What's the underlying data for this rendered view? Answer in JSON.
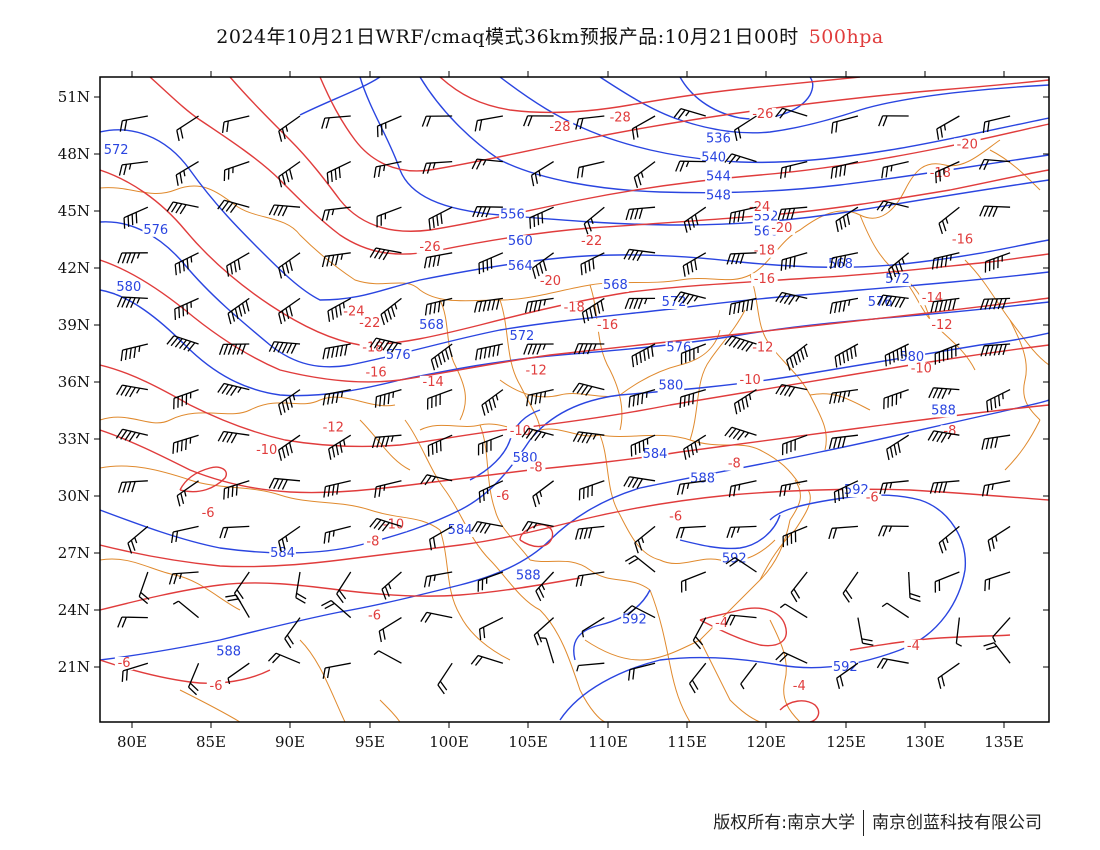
{
  "title": {
    "main": "2024年10月21日WRF/cmaq模式36km预报产品:10月21日00时",
    "level": "500hpa"
  },
  "axes": {
    "lat_labels": [
      "51N",
      "48N",
      "45N",
      "42N",
      "39N",
      "36N",
      "33N",
      "30N",
      "27N",
      "24N",
      "21N"
    ],
    "lon_labels": [
      "80E",
      "85E",
      "90E",
      "95E",
      "100E",
      "105E",
      "110E",
      "115E",
      "120E",
      "125E",
      "130E",
      "135E"
    ]
  },
  "colors": {
    "geopotential": "#2a45e0",
    "temperature": "#e03c3c",
    "border": "#e08a2e",
    "wind": "#000000",
    "frame": "#000000"
  },
  "contour_labels": {
    "height": [
      {
        "text": "572",
        "lon": 79.0,
        "lat": 48.0
      },
      {
        "text": "576",
        "lon": 81.5,
        "lat": 43.8
      },
      {
        "text": "580",
        "lon": 79.8,
        "lat": 40.8
      },
      {
        "text": "536",
        "lon": 117.0,
        "lat": 48.6
      },
      {
        "text": "540",
        "lon": 116.7,
        "lat": 47.6
      },
      {
        "text": "544",
        "lon": 117.0,
        "lat": 46.6
      },
      {
        "text": "548",
        "lon": 117.0,
        "lat": 45.6
      },
      {
        "text": "552",
        "lon": 120.0,
        "lat": 44.5
      },
      {
        "text": "556",
        "lon": 104.0,
        "lat": 44.6
      },
      {
        "text": "560",
        "lon": 120.0,
        "lat": 43.7
      },
      {
        "text": "560",
        "lon": 104.5,
        "lat": 43.2
      },
      {
        "text": "564",
        "lon": 104.5,
        "lat": 41.9
      },
      {
        "text": "568",
        "lon": 124.7,
        "lat": 42.0
      },
      {
        "text": "568",
        "lon": 98.9,
        "lat": 38.8
      },
      {
        "text": "568",
        "lon": 110.5,
        "lat": 40.9
      },
      {
        "text": "572",
        "lon": 114.2,
        "lat": 40.0
      },
      {
        "text": "572",
        "lon": 104.6,
        "lat": 38.2
      },
      {
        "text": "572",
        "lon": 128.3,
        "lat": 41.2
      },
      {
        "text": "576",
        "lon": 96.8,
        "lat": 37.2
      },
      {
        "text": "576",
        "lon": 127.2,
        "lat": 40.0
      },
      {
        "text": "576",
        "lon": 114.5,
        "lat": 37.6
      },
      {
        "text": "580",
        "lon": 129.2,
        "lat": 37.1
      },
      {
        "text": "580",
        "lon": 114.0,
        "lat": 35.6
      },
      {
        "text": "580",
        "lon": 104.8,
        "lat": 31.8
      },
      {
        "text": "584",
        "lon": 89.5,
        "lat": 26.8
      },
      {
        "text": "584",
        "lon": 100.7,
        "lat": 28.0
      },
      {
        "text": "584",
        "lon": 113.0,
        "lat": 32.0
      },
      {
        "text": "588",
        "lon": 131.2,
        "lat": 34.3
      },
      {
        "text": "588",
        "lon": 105.0,
        "lat": 25.6
      },
      {
        "text": "588",
        "lon": 116.0,
        "lat": 30.7
      },
      {
        "text": "588",
        "lon": 86.1,
        "lat": 21.6
      },
      {
        "text": "592",
        "lon": 125.7,
        "lat": 30.1
      },
      {
        "text": "592",
        "lon": 118.0,
        "lat": 26.5
      },
      {
        "text": "592",
        "lon": 111.7,
        "lat": 23.3
      },
      {
        "text": "592",
        "lon": 125.0,
        "lat": 20.8
      }
    ],
    "temperature": [
      {
        "text": "-28",
        "lon": 110.8,
        "lat": 49.7
      },
      {
        "text": "-28",
        "lon": 107.0,
        "lat": 49.2
      },
      {
        "text": "-26",
        "lon": 119.8,
        "lat": 49.9
      },
      {
        "text": "-26",
        "lon": 98.8,
        "lat": 42.9
      },
      {
        "text": "-24",
        "lon": 119.6,
        "lat": 45.0
      },
      {
        "text": "-24",
        "lon": 94.0,
        "lat": 39.5
      },
      {
        "text": "-22",
        "lon": 109.0,
        "lat": 43.2
      },
      {
        "text": "-22",
        "lon": 95.0,
        "lat": 38.9
      },
      {
        "text": "-20",
        "lon": 132.7,
        "lat": 48.3
      },
      {
        "text": "-20",
        "lon": 121.0,
        "lat": 43.9
      },
      {
        "text": "-20",
        "lon": 106.4,
        "lat": 41.1
      },
      {
        "text": "-18",
        "lon": 131.0,
        "lat": 46.8
      },
      {
        "text": "-18",
        "lon": 119.9,
        "lat": 42.7
      },
      {
        "text": "-18",
        "lon": 107.9,
        "lat": 39.7
      },
      {
        "text": "-18",
        "lon": 95.2,
        "lat": 37.6
      },
      {
        "text": "-16",
        "lon": 132.4,
        "lat": 43.3
      },
      {
        "text": "-16",
        "lon": 119.9,
        "lat": 41.2
      },
      {
        "text": "-16",
        "lon": 110.0,
        "lat": 38.8
      },
      {
        "text": "-16",
        "lon": 95.4,
        "lat": 36.3
      },
      {
        "text": "-14",
        "lon": 130.5,
        "lat": 40.2
      },
      {
        "text": "-14",
        "lon": 99.0,
        "lat": 35.8
      },
      {
        "text": "-12",
        "lon": 131.1,
        "lat": 38.8
      },
      {
        "text": "-12",
        "lon": 119.8,
        "lat": 37.6
      },
      {
        "text": "-12",
        "lon": 105.5,
        "lat": 36.4
      },
      {
        "text": "-12",
        "lon": 92.7,
        "lat": 33.4
      },
      {
        "text": "-10",
        "lon": 129.8,
        "lat": 36.5
      },
      {
        "text": "-10",
        "lon": 119.0,
        "lat": 35.9
      },
      {
        "text": "-10",
        "lon": 104.5,
        "lat": 33.2
      },
      {
        "text": "-10",
        "lon": 88.5,
        "lat": 32.2
      },
      {
        "text": "-10",
        "lon": 96.5,
        "lat": 28.3
      },
      {
        "text": "-8",
        "lon": 131.6,
        "lat": 33.2
      },
      {
        "text": "-8",
        "lon": 118.0,
        "lat": 31.5
      },
      {
        "text": "-8",
        "lon": 105.5,
        "lat": 31.3
      },
      {
        "text": "-8",
        "lon": 95.2,
        "lat": 27.4
      },
      {
        "text": "-6",
        "lon": 126.7,
        "lat": 29.7
      },
      {
        "text": "-6",
        "lon": 114.3,
        "lat": 28.7
      },
      {
        "text": "-6",
        "lon": 103.4,
        "lat": 29.8
      },
      {
        "text": "-6",
        "lon": 84.8,
        "lat": 28.9
      },
      {
        "text": "-6",
        "lon": 95.3,
        "lat": 23.5
      },
      {
        "text": "-6",
        "lon": 79.5,
        "lat": 21.0
      },
      {
        "text": "-6",
        "lon": 85.3,
        "lat": 19.8
      },
      {
        "text": "-4",
        "lon": 117.2,
        "lat": 23.1
      },
      {
        "text": "-4",
        "lon": 129.3,
        "lat": 21.9
      },
      {
        "text": "-4",
        "lon": 122.1,
        "lat": 19.8
      }
    ]
  },
  "copyright": {
    "left": "版权所有:南京大学",
    "right": "南京创蓝科技有限公司"
  }
}
